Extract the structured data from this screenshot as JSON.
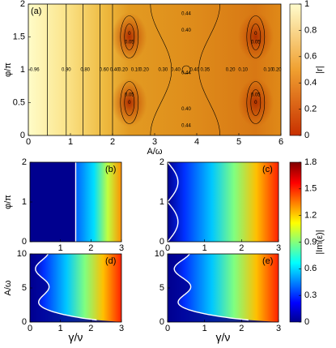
{
  "chart_data": [
    {
      "type": "heatmap",
      "label": "(a)",
      "xlabel": "A/ω",
      "ylabel": "φ/π",
      "xlim": [
        0,
        6
      ],
      "ylim": [
        0,
        2
      ],
      "xticks": [
        0,
        1,
        2,
        3,
        4,
        5,
        6
      ],
      "yticks": [
        0,
        0.5,
        1,
        1.5,
        2
      ],
      "annotations": [
        "0.96",
        "0.90",
        "0.80",
        "0.60",
        "0.40",
        "0.20",
        "0.10",
        "0.20",
        "0.30",
        "0.40",
        "0.44",
        "0.40",
        "0.35",
        "0.20",
        "0.10",
        "0.10",
        "0.20",
        "0.44",
        "0.40",
        "0.40",
        "0.44",
        "0.05",
        "0",
        "0.05",
        "0",
        "0.05",
        "0",
        "0.05",
        "0"
      ]
    },
    {
      "type": "heatmap",
      "label": "(b)",
      "ylabel": "φ/π",
      "xlim": [
        0,
        3
      ],
      "ylim": [
        0,
        2
      ],
      "xticks": [
        1,
        2,
        3
      ],
      "yticks": [
        0,
        1,
        2
      ]
    },
    {
      "type": "heatmap",
      "label": "(c)",
      "xlim": [
        0,
        3
      ],
      "ylim": [
        0,
        2
      ],
      "xticks": [
        0,
        1,
        2,
        3
      ],
      "yticks": [
        0,
        1,
        2
      ]
    },
    {
      "type": "heatmap",
      "label": "(d)",
      "xlabel": "γ/ν",
      "ylabel": "A/ω",
      "xlim": [
        0,
        3
      ],
      "ylim": [
        0,
        10
      ],
      "xticks": [
        0,
        1,
        2,
        3
      ],
      "yticks": [
        0,
        5,
        10
      ]
    },
    {
      "type": "heatmap",
      "label": "(e)",
      "xlabel": "γ/ν",
      "xlim": [
        0,
        3
      ],
      "ylim": [
        0,
        10
      ],
      "xticks": [
        0,
        1,
        2,
        3
      ],
      "yticks": [
        0,
        5,
        10
      ]
    },
    {
      "type": "colorbar",
      "label": "|r|",
      "ylim": [
        0,
        1
      ],
      "yticks": [
        0,
        0.2,
        0.4,
        0.6,
        0.8,
        1
      ]
    },
    {
      "type": "colorbar",
      "label": "|Im(ε)|",
      "ylim": [
        0,
        1.8
      ],
      "yticks": [
        0,
        0.3,
        0.6,
        0.9,
        1.2,
        1.5,
        1.8
      ]
    }
  ]
}
